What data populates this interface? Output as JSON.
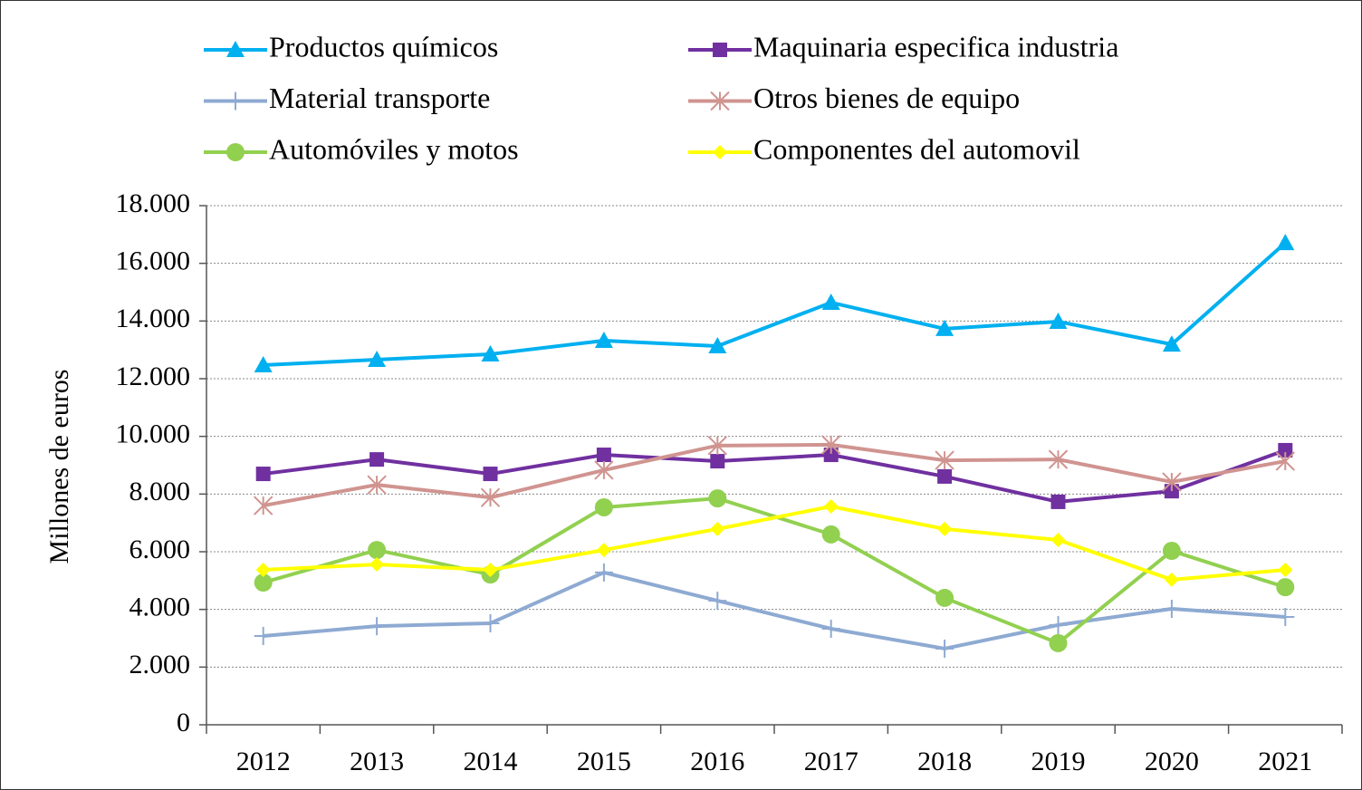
{
  "chart_data": {
    "type": "line",
    "y_label": "Millones de euros",
    "categories": [
      "2012",
      "2013",
      "2014",
      "2015",
      "2016",
      "2017",
      "2018",
      "2019",
      "2020",
      "2021"
    ],
    "ylim": [
      0,
      18000
    ],
    "yticks": [
      0,
      {
        "value": 2000,
        "label": "2.000"
      },
      {
        "value": 4000,
        "label": "4.000"
      },
      {
        "value": 6000,
        "label": "6.000"
      },
      {
        "value": 8000,
        "label": "8.000"
      },
      {
        "value": 10000,
        "label": "10.000"
      },
      {
        "value": 12000,
        "label": "12.000"
      },
      {
        "value": 14000,
        "label": "14.000"
      },
      {
        "value": 16000,
        "label": "16.000"
      },
      {
        "value": 18000,
        "label": "18.000"
      }
    ],
    "grid": true,
    "legend": "top",
    "series": [
      {
        "name": "Productos químicos",
        "color": "#00b0f0",
        "marker": "triangle",
        "values": [
          12470,
          12660,
          12850,
          13320,
          13130,
          14640,
          13730,
          13980,
          13190,
          16710
        ]
      },
      {
        "name": "Maquinaria especifica industria",
        "color": "#7030a0",
        "marker": "square",
        "values": [
          8700,
          9200,
          8700,
          9360,
          9140,
          9360,
          8610,
          7730,
          8100,
          9520
        ]
      },
      {
        "name": "Material transporte",
        "color": "#8eaad2",
        "marker": "plus",
        "values": [
          3080,
          3420,
          3520,
          5280,
          4300,
          3330,
          2640,
          3460,
          4020,
          3740
        ]
      },
      {
        "name": "Otros bienes de equipo",
        "color": "#d09490",
        "marker": "asterisk",
        "values": [
          7600,
          8320,
          7880,
          8830,
          9680,
          9710,
          9170,
          9200,
          8420,
          9140
        ]
      },
      {
        "name": "Automóviles y motos",
        "color": "#92d050",
        "marker": "circle",
        "values": [
          4930,
          6060,
          5210,
          7540,
          7850,
          6600,
          4400,
          2830,
          6030,
          4770
        ]
      },
      {
        "name": "Componentes del automovil",
        "color": "#ffff00",
        "marker": "diamond",
        "values": [
          5370,
          5560,
          5370,
          6060,
          6790,
          7570,
          6790,
          6410,
          5030,
          5370
        ]
      }
    ]
  }
}
